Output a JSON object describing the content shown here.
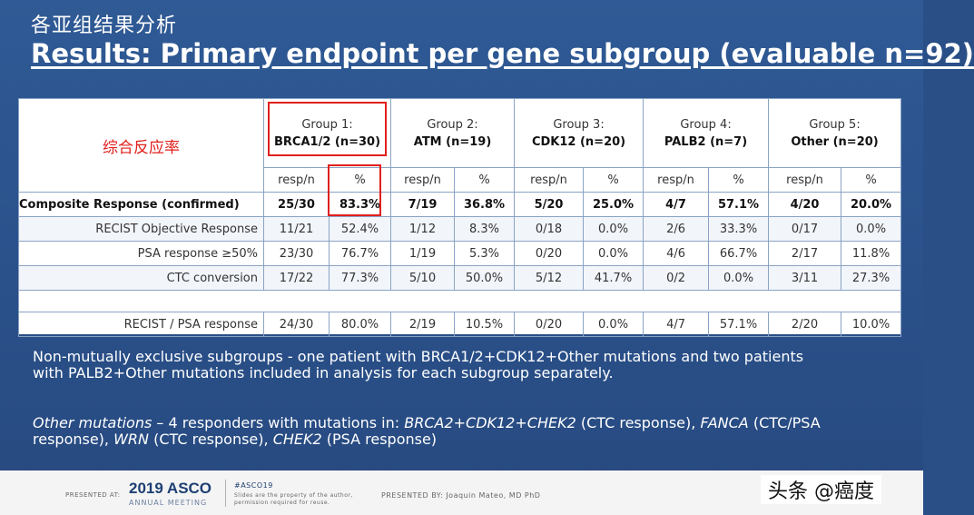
{
  "banner": "各亚组结果分析",
  "title": "Results: Primary endpoint per gene subgroup (evaluable n=92)",
  "annotation_cn": "综合反应率",
  "groups": [
    {
      "line1": "Group 1:",
      "line2": "BRCA1/2 (n=30)"
    },
    {
      "line1": "Group 2:",
      "line2": "ATM (n=19)"
    },
    {
      "line1": "Group 3:",
      "line2": "CDK12 (n=20)"
    },
    {
      "line1": "Group  4:",
      "line2": "PALB2 (n=7)"
    },
    {
      "line1": "Group  5:",
      "line2": "Other (n=20)"
    }
  ],
  "subheaders": {
    "resp": "resp/n",
    "pct": "%"
  },
  "rows": [
    {
      "label": "Composite Response (confirmed)",
      "cells": [
        "25/30",
        "83.3%",
        "7/19",
        "36.8%",
        "5/20",
        "25.0%",
        "4/7",
        "57.1%",
        "4/20",
        "20.0%"
      ]
    },
    {
      "label": "RECIST Objective Response",
      "cells": [
        "11/21",
        "52.4%",
        "1/12",
        "8.3%",
        "0/18",
        "0.0%",
        "2/6",
        "33.3%",
        "0/17",
        "0.0%"
      ]
    },
    {
      "label": "PSA response ≥50%",
      "cells": [
        "23/30",
        "76.7%",
        "1/19",
        "5.3%",
        "0/20",
        "0.0%",
        "4/6",
        "66.7%",
        "2/17",
        "11.8%"
      ]
    },
    {
      "label": "CTC conversion",
      "cells": [
        "17/22",
        "77.3%",
        "5/10",
        "50.0%",
        "5/12",
        "41.7%",
        "0/2",
        "0.0%",
        "3/11",
        "27.3%"
      ]
    },
    {
      "label": "RECIST / PSA response",
      "cells": [
        "24/30",
        "80.0%",
        "2/19",
        "10.5%",
        "0/20",
        "0.0%",
        "4/7",
        "57.1%",
        "2/20",
        "10.0%"
      ]
    }
  ],
  "note1_line1": "Non-mutually exclusive subgroups - one patient with BRCA1/2+CDK12+Other mutations and two patients",
  "note1_line2": "with PALB2+Other mutations included in analysis for each subgroup separately.",
  "note2": {
    "a_i": "Other mutations",
    "b": " – 4 responders with mutations in: ",
    "c_i": "BRCA2+CDK12+CHEK2",
    "d": " (CTC response), ",
    "e_i": "FANCA",
    "f": " (CTC/PSA",
    "g": "response), ",
    "h_i": "WRN",
    "j": " (CTC response), ",
    "k_i": "CHEK2",
    "l": " (PSA response)"
  },
  "footer": {
    "presented_at": "PRESENTED AT:",
    "asco_year": "2019 ASCO",
    "asco_sub": "ANNUAL MEETING",
    "hashtag": "#ASCO19",
    "slides_note_1": "Slides are the property of the author,",
    "slides_note_2": "permission required for reuse.",
    "presented_by": "PRESENTED BY:  Joaquin Mateo, MD PhD"
  },
  "watermark": "头条 @癌度",
  "colors": {
    "accent_red": "#e0201c",
    "slide_blue": "#2a5089"
  }
}
